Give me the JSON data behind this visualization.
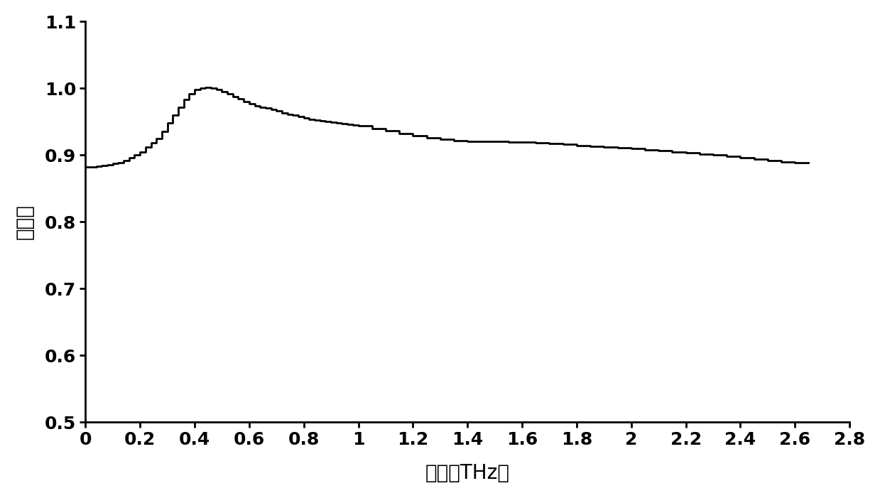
{
  "xlabel": "频率（THz）",
  "ylabel": "透过率",
  "xlim": [
    0,
    2.8
  ],
  "ylim": [
    0.5,
    1.1
  ],
  "xticks": [
    0,
    0.2,
    0.4,
    0.6,
    0.8,
    1,
    1.2,
    1.4,
    1.6,
    1.8,
    2,
    2.2,
    2.4,
    2.6,
    2.8
  ],
  "yticks": [
    0.5,
    0.6,
    0.7,
    0.8,
    0.9,
    1.0,
    1.1
  ],
  "line_color": "#000000",
  "line_width": 2.0,
  "background_color": "#ffffff",
  "x_data": [
    0.0,
    0.02,
    0.04,
    0.06,
    0.08,
    0.1,
    0.12,
    0.14,
    0.16,
    0.18,
    0.2,
    0.22,
    0.24,
    0.26,
    0.28,
    0.3,
    0.32,
    0.34,
    0.36,
    0.38,
    0.4,
    0.42,
    0.44,
    0.46,
    0.48,
    0.5,
    0.52,
    0.54,
    0.56,
    0.58,
    0.6,
    0.62,
    0.64,
    0.66,
    0.68,
    0.7,
    0.72,
    0.74,
    0.76,
    0.78,
    0.8,
    0.82,
    0.84,
    0.86,
    0.88,
    0.9,
    0.92,
    0.94,
    0.96,
    0.98,
    1.0,
    1.05,
    1.1,
    1.15,
    1.2,
    1.25,
    1.3,
    1.35,
    1.4,
    1.45,
    1.5,
    1.55,
    1.6,
    1.65,
    1.7,
    1.75,
    1.8,
    1.85,
    1.9,
    1.95,
    2.0,
    2.05,
    2.1,
    2.15,
    2.2,
    2.25,
    2.3,
    2.35,
    2.4,
    2.45,
    2.5,
    2.55,
    2.6,
    2.65
  ],
  "y_data": [
    0.882,
    0.882,
    0.883,
    0.884,
    0.885,
    0.887,
    0.889,
    0.892,
    0.896,
    0.9,
    0.905,
    0.912,
    0.918,
    0.925,
    0.935,
    0.948,
    0.96,
    0.972,
    0.983,
    0.992,
    0.998,
    1.0,
    1.001,
    1.0,
    0.998,
    0.995,
    0.992,
    0.988,
    0.984,
    0.98,
    0.977,
    0.974,
    0.972,
    0.97,
    0.968,
    0.966,
    0.963,
    0.961,
    0.96,
    0.958,
    0.956,
    0.954,
    0.952,
    0.951,
    0.95,
    0.949,
    0.948,
    0.947,
    0.946,
    0.945,
    0.944,
    0.94,
    0.936,
    0.932,
    0.929,
    0.926,
    0.924,
    0.922,
    0.921,
    0.92,
    0.92,
    0.919,
    0.919,
    0.918,
    0.917,
    0.916,
    0.914,
    0.913,
    0.912,
    0.911,
    0.91,
    0.908,
    0.907,
    0.905,
    0.903,
    0.901,
    0.9,
    0.898,
    0.896,
    0.894,
    0.892,
    0.89,
    0.889,
    0.889
  ]
}
